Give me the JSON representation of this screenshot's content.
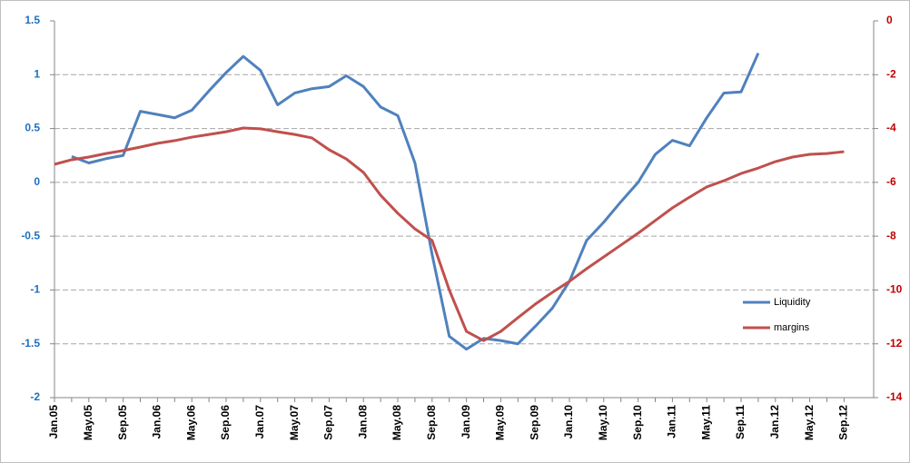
{
  "chart_data": {
    "type": "line",
    "categories": [
      "Jan.05",
      null,
      "May.05",
      null,
      "Sep.05",
      null,
      "Jan.06",
      null,
      "May.06",
      null,
      "Sep.06",
      null,
      "Jan.07",
      null,
      "May.07",
      null,
      "Sep.07",
      null,
      "Jan.08",
      null,
      "May.08",
      null,
      "Sep.08",
      null,
      "Jan.09",
      null,
      "May.09",
      null,
      "Sep.09",
      null,
      "Jan.10",
      null,
      "May.10",
      null,
      "Sep.10",
      null,
      "Jan.11",
      null,
      "May.11",
      null,
      "Sep.11",
      null,
      "Jan.12",
      null,
      "May.12",
      null,
      "Sep.12"
    ],
    "series": [
      {
        "name": "Liquidity",
        "color": "#4f81bd",
        "values": [
          null,
          0.24,
          0.18,
          0.22,
          0.25,
          0.66,
          0.63,
          0.6,
          0.67,
          0.85,
          1.02,
          1.17,
          1.04,
          0.72,
          0.83,
          0.87,
          0.89,
          0.99,
          0.89,
          0.7,
          0.62,
          0.18,
          -0.67,
          -1.43,
          -1.55,
          -1.45,
          -1.47,
          -1.5,
          -1.34,
          -1.17,
          -0.92,
          -0.54,
          -0.37,
          -0.18,
          0,
          0.26,
          0.39,
          0.34,
          0.6,
          0.83,
          0.84,
          1.2,
          null,
          null,
          null,
          null,
          null
        ]
      },
      {
        "name": "margins",
        "color": "#c0504d",
        "axis": "y2",
        "values": [
          -5.33,
          -5.16,
          -5.06,
          -4.93,
          -4.82,
          -4.69,
          -4.55,
          -4.45,
          -4.32,
          -4.22,
          -4.12,
          -3.98,
          -4.01,
          -4.12,
          -4.22,
          -4.35,
          -4.79,
          -5.13,
          -5.63,
          -6.48,
          -7.15,
          -7.73,
          -8.16,
          -10.0,
          -11.54,
          -11.88,
          -11.54,
          -11.03,
          -10.53,
          -10.09,
          -9.68,
          -9.21,
          -8.77,
          -8.33,
          -7.89,
          -7.42,
          -6.95,
          -6.55,
          -6.17,
          -5.94,
          -5.67,
          -5.47,
          -5.23,
          -5.06,
          -4.96,
          -4.93,
          -4.86
        ]
      }
    ],
    "ylim": [
      -2,
      1.5
    ],
    "yticks": [
      -2,
      -1.5,
      -1,
      -0.5,
      0,
      0.5,
      1,
      1.5
    ],
    "ytick_color": "#1f6fbf",
    "y2lim": [
      -14,
      0
    ],
    "y2ticks": [
      -14,
      -12,
      -10,
      -8,
      -6,
      -4,
      -2,
      0
    ],
    "y2tick_color": "#c00000",
    "grid": true,
    "legend": "right"
  }
}
